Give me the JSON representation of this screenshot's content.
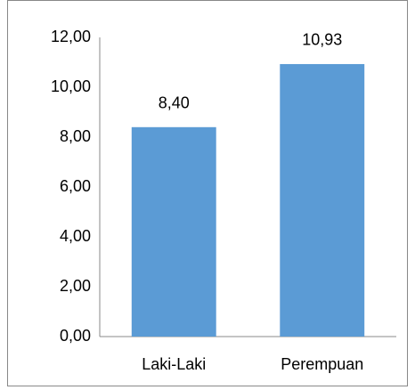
{
  "chart_data": {
    "type": "bar",
    "categories": [
      "Laki-Laki",
      "Perempuan"
    ],
    "values": [
      8.4,
      10.93
    ],
    "value_labels": [
      "8,40",
      "10,93"
    ],
    "color": "#5b9bd5",
    "ylim": [
      0,
      12
    ],
    "yticks": [
      {
        "value": 0,
        "label": "0,00"
      },
      {
        "value": 2,
        "label": "2,00"
      },
      {
        "value": 4,
        "label": "4,00"
      },
      {
        "value": 6,
        "label": "6,00"
      },
      {
        "value": 8,
        "label": "8,00"
      },
      {
        "value": 10,
        "label": "10,00"
      },
      {
        "value": 12,
        "label": "12,00"
      }
    ],
    "grid": false
  }
}
